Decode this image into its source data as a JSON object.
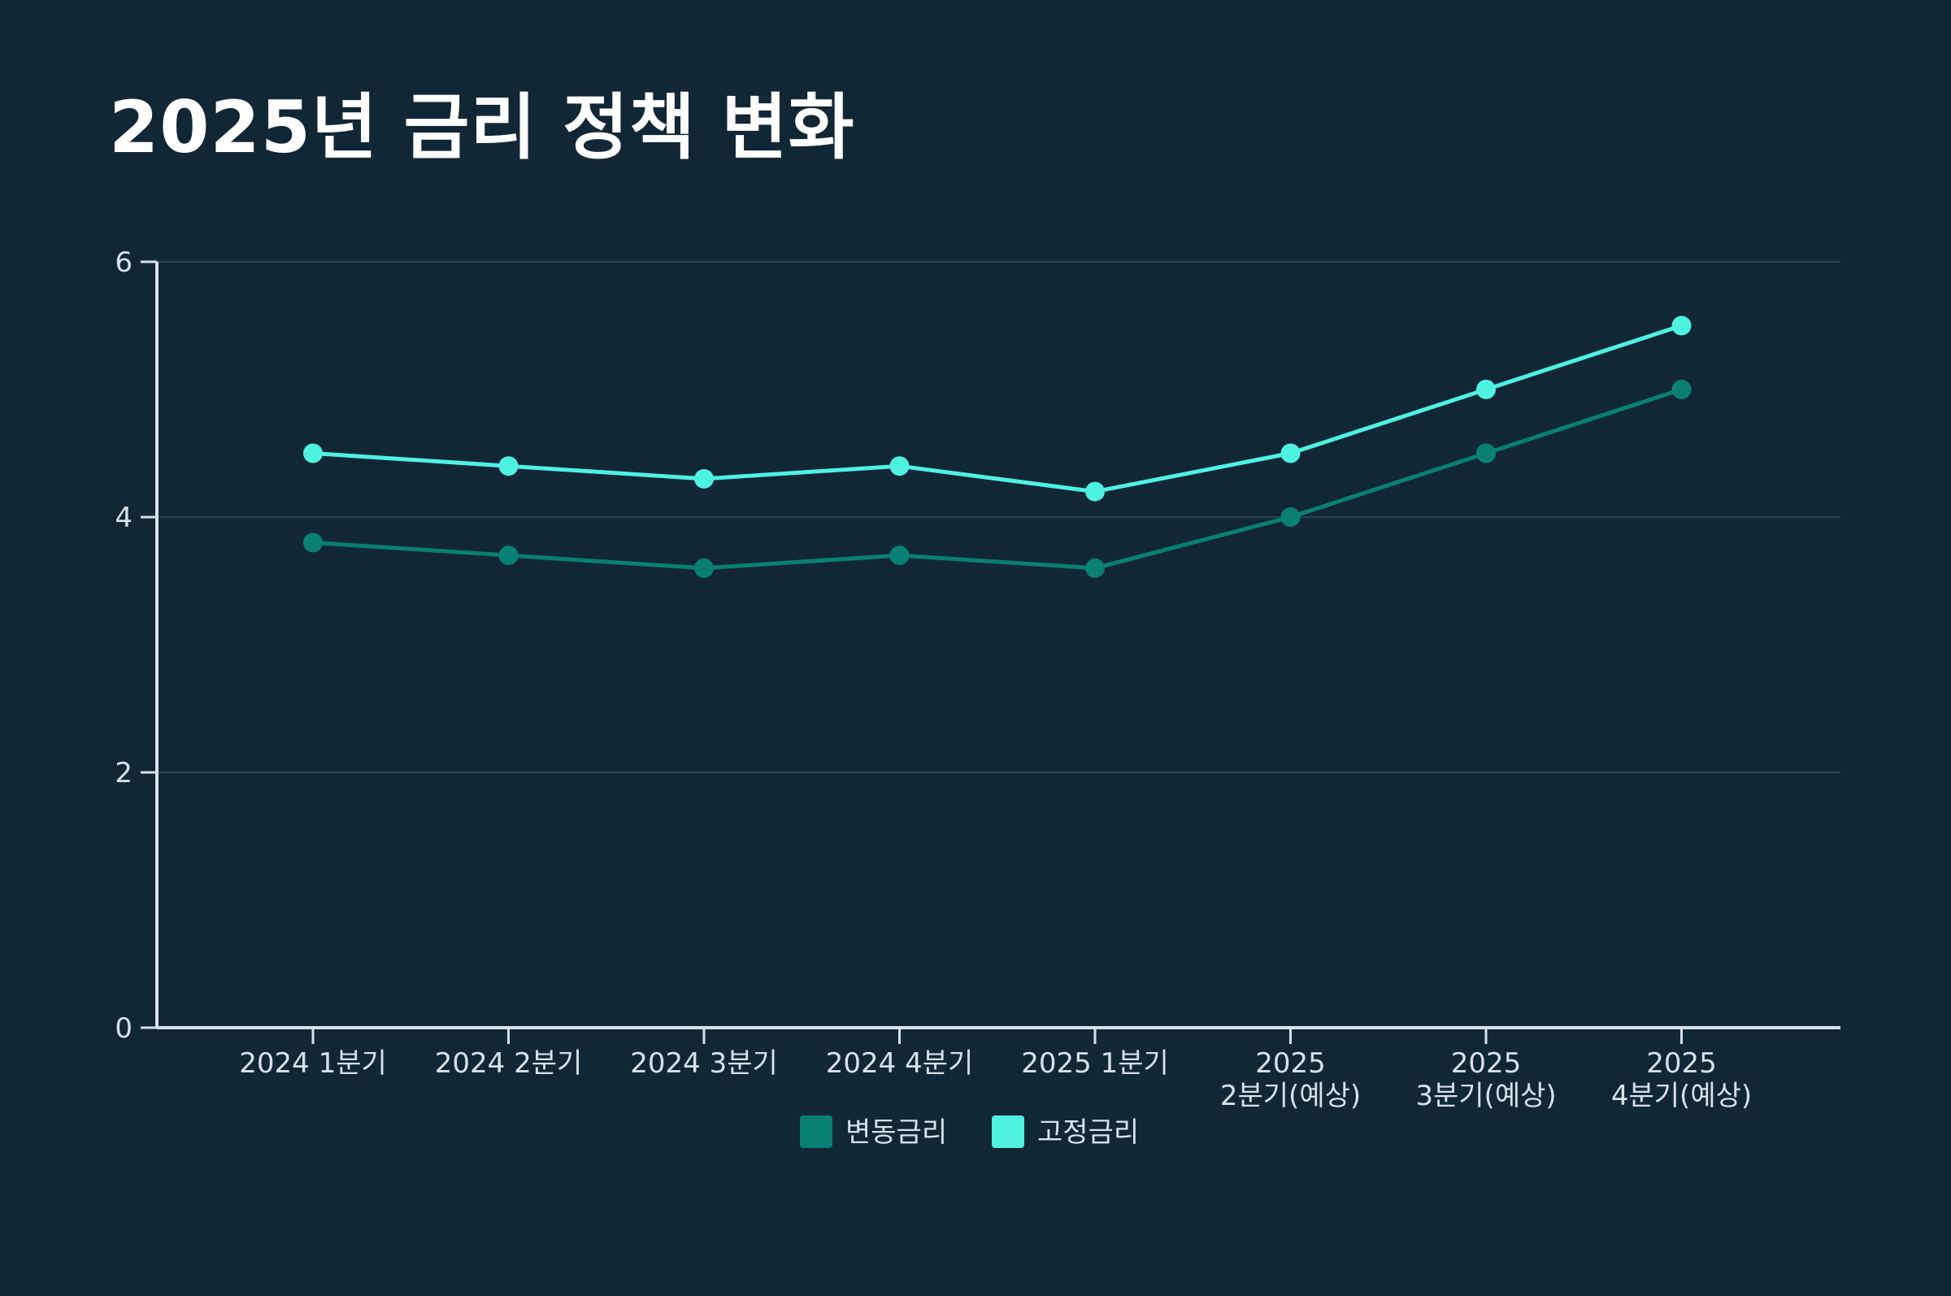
{
  "chart_data": {
    "type": "line",
    "title": "2025년 금리 정책 변화",
    "xlabel": "",
    "ylabel": "",
    "categories": [
      "2024 1분기",
      "2024 2분기",
      "2024 3분기",
      "2024 4분기",
      "2025 1분기",
      "2025 2분기(예상)",
      "2025 3분기(예상)",
      "2025 4분기(예상)"
    ],
    "category_lines": [
      [
        "2024 1분기"
      ],
      [
        "2024 2분기"
      ],
      [
        "2024 3분기"
      ],
      [
        "2024 4분기"
      ],
      [
        "2025 1분기"
      ],
      [
        "2025",
        "2분기(예상)"
      ],
      [
        "2025",
        "3분기(예상)"
      ],
      [
        "2025",
        "4분기(예상)"
      ]
    ],
    "series": [
      {
        "name": "변동금리",
        "color": "#0a8074",
        "values": [
          3.8,
          3.7,
          3.6,
          3.7,
          3.6,
          4.0,
          4.5,
          5.0
        ]
      },
      {
        "name": "고정금리",
        "color": "#4ef2e0",
        "values": [
          4.5,
          4.4,
          4.3,
          4.4,
          4.2,
          4.5,
          5.0,
          5.5
        ]
      }
    ],
    "ylim": [
      0,
      6
    ],
    "yticks": [
      0,
      2,
      4,
      6
    ],
    "grid": true,
    "legend_position": "bottom-center",
    "colors": {
      "background": "#122736",
      "axis": "#d6e1ea",
      "grid": "#2e4654",
      "text": "#d6e1ea"
    }
  }
}
